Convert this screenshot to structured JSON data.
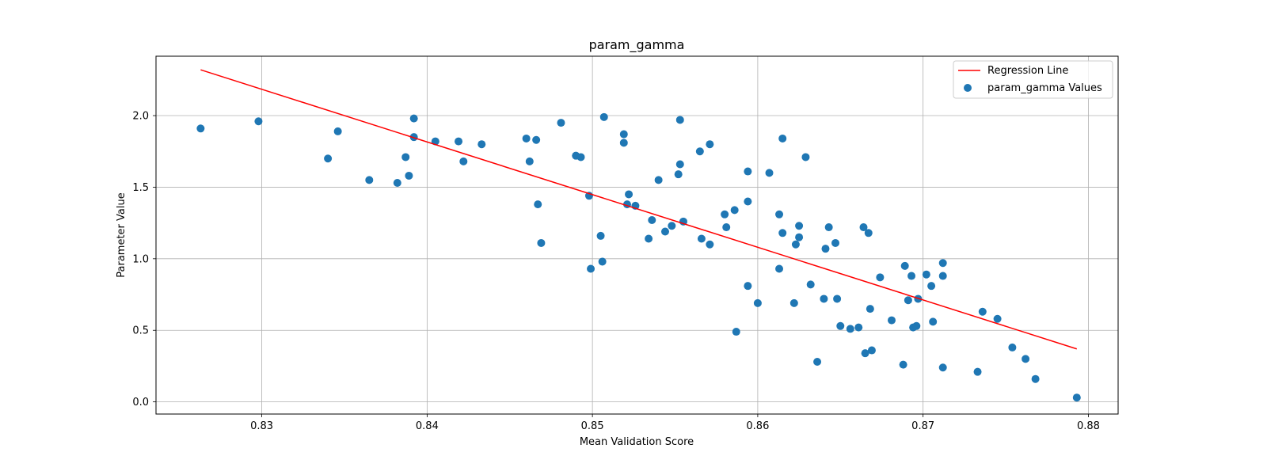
{
  "chart_data": {
    "type": "scatter",
    "title": "param_gamma",
    "xlabel": "Mean Validation Score",
    "ylabel": "Parameter Value",
    "xlim": [
      0.8236,
      0.8818
    ],
    "ylim": [
      -0.085,
      2.415
    ],
    "grid": true,
    "legend_position": "top-right",
    "x_ticks": [
      0.83,
      0.84,
      0.85,
      0.86,
      0.87,
      0.88
    ],
    "x_tick_labels": [
      "0.83",
      "0.84",
      "0.85",
      "0.86",
      "0.87",
      "0.88"
    ],
    "y_ticks": [
      0.0,
      0.5,
      1.0,
      1.5,
      2.0
    ],
    "y_tick_labels": [
      "0.0",
      "0.5",
      "1.0",
      "1.5",
      "2.0"
    ],
    "colors": {
      "scatter": "#1f77b4",
      "line": "#ff0000"
    },
    "series": [
      {
        "name": "Regression Line",
        "kind": "line",
        "x": [
          0.8263,
          0.8793
        ],
        "y": [
          2.32,
          0.37
        ]
      },
      {
        "name": "param_gamma Values",
        "kind": "scatter",
        "points": [
          [
            0.8263,
            1.91
          ],
          [
            0.8298,
            1.96
          ],
          [
            0.834,
            1.7
          ],
          [
            0.8346,
            1.89
          ],
          [
            0.8365,
            1.55
          ],
          [
            0.8382,
            1.53
          ],
          [
            0.8387,
            1.71
          ],
          [
            0.8389,
            1.58
          ],
          [
            0.8392,
            1.98
          ],
          [
            0.8392,
            1.85
          ],
          [
            0.8405,
            1.82
          ],
          [
            0.8419,
            1.82
          ],
          [
            0.8422,
            1.68
          ],
          [
            0.8433,
            1.8
          ],
          [
            0.846,
            1.84
          ],
          [
            0.8462,
            1.68
          ],
          [
            0.8466,
            1.83
          ],
          [
            0.8467,
            1.38
          ],
          [
            0.8469,
            1.11
          ],
          [
            0.8481,
            1.95
          ],
          [
            0.849,
            1.72
          ],
          [
            0.8493,
            1.71
          ],
          [
            0.8498,
            1.44
          ],
          [
            0.8499,
            0.93
          ],
          [
            0.8505,
            1.16
          ],
          [
            0.8506,
            0.98
          ],
          [
            0.8507,
            1.99
          ],
          [
            0.8519,
            1.87
          ],
          [
            0.8519,
            1.81
          ],
          [
            0.8521,
            1.38
          ],
          [
            0.8522,
            1.45
          ],
          [
            0.8526,
            1.37
          ],
          [
            0.8534,
            1.14
          ],
          [
            0.8536,
            1.27
          ],
          [
            0.854,
            1.55
          ],
          [
            0.8544,
            1.19
          ],
          [
            0.8548,
            1.23
          ],
          [
            0.8552,
            1.59
          ],
          [
            0.8553,
            1.66
          ],
          [
            0.8553,
            1.97
          ],
          [
            0.8555,
            1.26
          ],
          [
            0.8565,
            1.75
          ],
          [
            0.8566,
            1.14
          ],
          [
            0.8571,
            1.8
          ],
          [
            0.8571,
            1.1
          ],
          [
            0.858,
            1.31
          ],
          [
            0.8581,
            1.22
          ],
          [
            0.8586,
            1.34
          ],
          [
            0.8587,
            0.49
          ],
          [
            0.8594,
            1.61
          ],
          [
            0.8594,
            1.4
          ],
          [
            0.8594,
            0.81
          ],
          [
            0.86,
            0.69
          ],
          [
            0.8607,
            1.6
          ],
          [
            0.8613,
            1.31
          ],
          [
            0.8613,
            0.93
          ],
          [
            0.8615,
            1.84
          ],
          [
            0.8615,
            1.18
          ],
          [
            0.8622,
            0.69
          ],
          [
            0.8623,
            1.1
          ],
          [
            0.8625,
            1.23
          ],
          [
            0.8625,
            1.15
          ],
          [
            0.8629,
            1.71
          ],
          [
            0.8632,
            0.82
          ],
          [
            0.8636,
            0.28
          ],
          [
            0.864,
            0.72
          ],
          [
            0.8641,
            1.07
          ],
          [
            0.8643,
            1.22
          ],
          [
            0.8647,
            1.11
          ],
          [
            0.8648,
            0.72
          ],
          [
            0.865,
            0.53
          ],
          [
            0.8656,
            0.51
          ],
          [
            0.8661,
            0.52
          ],
          [
            0.8664,
            1.22
          ],
          [
            0.8665,
            0.34
          ],
          [
            0.8667,
            1.18
          ],
          [
            0.8668,
            0.65
          ],
          [
            0.8669,
            0.36
          ],
          [
            0.8674,
            0.87
          ],
          [
            0.8681,
            0.57
          ],
          [
            0.8688,
            0.26
          ],
          [
            0.8689,
            0.95
          ],
          [
            0.8691,
            0.71
          ],
          [
            0.8693,
            0.88
          ],
          [
            0.8694,
            0.52
          ],
          [
            0.8696,
            0.53
          ],
          [
            0.8697,
            0.72
          ],
          [
            0.8702,
            0.89
          ],
          [
            0.8705,
            0.81
          ],
          [
            0.8706,
            0.56
          ],
          [
            0.8712,
            0.97
          ],
          [
            0.8712,
            0.88
          ],
          [
            0.8712,
            0.24
          ],
          [
            0.8733,
            0.21
          ],
          [
            0.8736,
            0.63
          ],
          [
            0.8745,
            0.58
          ],
          [
            0.8754,
            0.38
          ],
          [
            0.8762,
            0.3
          ],
          [
            0.8768,
            0.16
          ],
          [
            0.8793,
            0.03
          ]
        ]
      }
    ]
  }
}
